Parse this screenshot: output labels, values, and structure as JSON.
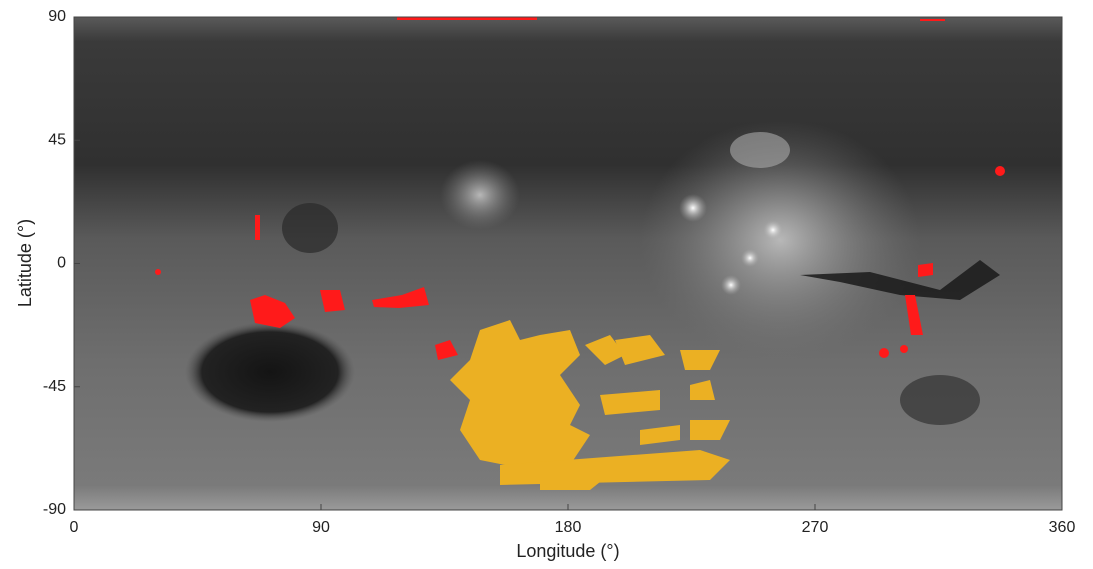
{
  "chart_data": {
    "type": "map",
    "x_label": "Longitude (°)",
    "y_label": "Latitude (°)",
    "xlim": [
      0,
      360
    ],
    "xticks": [
      0,
      90,
      180,
      270,
      360
    ],
    "ylim": [
      -90,
      90
    ],
    "yticks": [
      90,
      45,
      0,
      -45,
      -90
    ]
  }
}
